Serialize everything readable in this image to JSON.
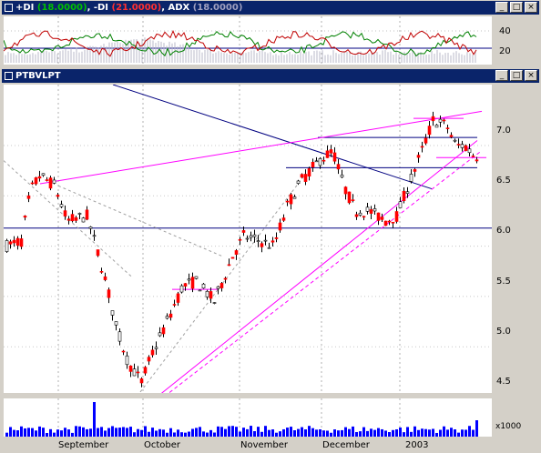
{
  "di_panel": {
    "plus_di_label": "+DI",
    "plus_di_value": "(18.0000)",
    "minus_di_label": "-DI",
    "minus_di_value": "(21.0000)",
    "adx_label": "ADX",
    "adx_value": "(18.0000)",
    "y_ticks": [
      "40",
      "20"
    ]
  },
  "price_panel": {
    "title": "PTBVLPT",
    "y_ticks": [
      "7.0",
      "6.5",
      "6.0",
      "5.5",
      "5.0",
      "4.5"
    ]
  },
  "volume_panel": {
    "unit_label": "x1000"
  },
  "x_axis": {
    "months": [
      "September",
      "October",
      "November",
      "December",
      "2003"
    ]
  },
  "window_buttons": {
    "minimize": "_",
    "maximize": "□",
    "close": "×"
  },
  "colors": {
    "title_bg": "#0a246a",
    "up_candle": "#ffffff",
    "down_candle": "#ff0000",
    "volume": "#0000ff",
    "trend_magenta": "#ff00ff",
    "trend_blue": "#000080"
  }
}
